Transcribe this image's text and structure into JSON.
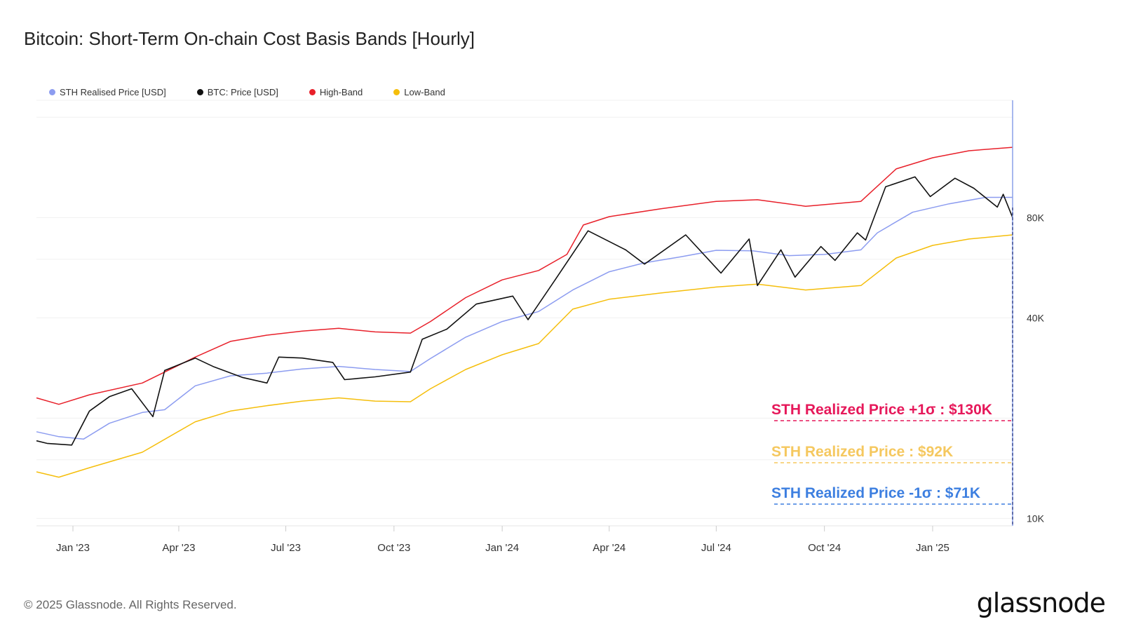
{
  "chart_data": {
    "type": "line",
    "title": "Bitcoin: Short-Term On-chain Cost Basis Bands [Hourly]",
    "yscale": "log",
    "ylim": [
      9500,
      180000
    ],
    "xlim": [
      "2022-12-01",
      "2025-03-10"
    ],
    "y_ticks": [
      {
        "value": 10000,
        "label": "10K"
      },
      {
        "value": 40000,
        "label": "40K"
      },
      {
        "value": 80000,
        "label": "80K"
      }
    ],
    "x_ticks": [
      {
        "date": "2023-01-01",
        "label": "Jan '23"
      },
      {
        "date": "2023-04-01",
        "label": "Apr '23"
      },
      {
        "date": "2023-07-01",
        "label": "Jul '23"
      },
      {
        "date": "2023-10-01",
        "label": "Oct '23"
      },
      {
        "date": "2024-01-01",
        "label": "Jan '24"
      },
      {
        "date": "2024-04-01",
        "label": "Apr '24"
      },
      {
        "date": "2024-07-01",
        "label": "Jul '24"
      },
      {
        "date": "2024-10-01",
        "label": "Oct '24"
      },
      {
        "date": "2025-01-01",
        "label": "Jan '25"
      }
    ],
    "grid": true,
    "legend_position": "top-left",
    "series": [
      {
        "name": "STH Realised Price [USD]",
        "color": "#8c9cf0",
        "points": [
          [
            "2022-12-01",
            18200
          ],
          [
            "2022-12-20",
            17600
          ],
          [
            "2023-01-10",
            17300
          ],
          [
            "2023-02-01",
            19300
          ],
          [
            "2023-03-01",
            20800
          ],
          [
            "2023-03-20",
            21200
          ],
          [
            "2023-04-15",
            25000
          ],
          [
            "2023-05-15",
            26800
          ],
          [
            "2023-06-15",
            27300
          ],
          [
            "2023-07-15",
            28100
          ],
          [
            "2023-08-15",
            28600
          ],
          [
            "2023-09-15",
            28000
          ],
          [
            "2023-10-15",
            27600
          ],
          [
            "2023-11-01",
            30200
          ],
          [
            "2023-12-01",
            35000
          ],
          [
            "2024-01-01",
            39000
          ],
          [
            "2024-02-01",
            41800
          ],
          [
            "2024-03-01",
            48500
          ],
          [
            "2024-04-01",
            55000
          ],
          [
            "2024-05-01",
            58500
          ],
          [
            "2024-06-01",
            61000
          ],
          [
            "2024-07-01",
            63800
          ],
          [
            "2024-08-01",
            63600
          ],
          [
            "2024-09-01",
            61500
          ],
          [
            "2024-10-01",
            62000
          ],
          [
            "2024-11-01",
            64000
          ],
          [
            "2024-11-15",
            72000
          ],
          [
            "2024-12-15",
            83000
          ],
          [
            "2025-01-15",
            88000
          ],
          [
            "2025-02-15",
            92000
          ],
          [
            "2025-03-10",
            92000
          ]
        ]
      },
      {
        "name": "BTC: Price [USD]",
        "color": "#111111",
        "points": [
          [
            "2022-12-01",
            17100
          ],
          [
            "2022-12-10",
            16800
          ],
          [
            "2022-12-31",
            16600
          ],
          [
            "2023-01-15",
            21000
          ],
          [
            "2023-02-01",
            23200
          ],
          [
            "2023-02-20",
            24500
          ],
          [
            "2023-03-10",
            20200
          ],
          [
            "2023-03-20",
            27800
          ],
          [
            "2023-04-15",
            30300
          ],
          [
            "2023-05-01",
            28500
          ],
          [
            "2023-05-25",
            26500
          ],
          [
            "2023-06-15",
            25500
          ],
          [
            "2023-06-25",
            30500
          ],
          [
            "2023-07-15",
            30300
          ],
          [
            "2023-08-10",
            29400
          ],
          [
            "2023-08-20",
            26100
          ],
          [
            "2023-09-15",
            26600
          ],
          [
            "2023-10-15",
            27500
          ],
          [
            "2023-10-25",
            34500
          ],
          [
            "2023-11-15",
            37000
          ],
          [
            "2023-12-10",
            44000
          ],
          [
            "2024-01-10",
            46500
          ],
          [
            "2024-01-23",
            39500
          ],
          [
            "2024-02-15",
            52000
          ],
          [
            "2024-03-14",
            73000
          ],
          [
            "2024-04-15",
            64000
          ],
          [
            "2024-05-01",
            58000
          ],
          [
            "2024-06-05",
            71000
          ],
          [
            "2024-07-05",
            54500
          ],
          [
            "2024-07-29",
            69000
          ],
          [
            "2024-08-05",
            50000
          ],
          [
            "2024-08-25",
            64000
          ],
          [
            "2024-09-06",
            53000
          ],
          [
            "2024-09-28",
            65500
          ],
          [
            "2024-10-10",
            59500
          ],
          [
            "2024-10-29",
            72000
          ],
          [
            "2024-11-05",
            68500
          ],
          [
            "2024-11-22",
            99000
          ],
          [
            "2024-12-17",
            106000
          ],
          [
            "2024-12-30",
            92500
          ],
          [
            "2025-01-20",
            105000
          ],
          [
            "2025-02-05",
            98000
          ],
          [
            "2025-02-25",
            86000
          ],
          [
            "2025-03-02",
            94000
          ],
          [
            "2025-03-10",
            80000
          ]
        ]
      },
      {
        "name": "High-Band",
        "color": "#e8202a",
        "points": [
          [
            "2022-12-01",
            23000
          ],
          [
            "2022-12-20",
            22000
          ],
          [
            "2023-01-15",
            23500
          ],
          [
            "2023-03-01",
            25500
          ],
          [
            "2023-04-15",
            30500
          ],
          [
            "2023-05-15",
            34000
          ],
          [
            "2023-06-15",
            35500
          ],
          [
            "2023-07-15",
            36500
          ],
          [
            "2023-08-15",
            37200
          ],
          [
            "2023-09-15",
            36300
          ],
          [
            "2023-10-15",
            36000
          ],
          [
            "2023-11-01",
            39000
          ],
          [
            "2023-12-01",
            46000
          ],
          [
            "2024-01-01",
            52000
          ],
          [
            "2024-02-01",
            55500
          ],
          [
            "2024-02-25",
            62000
          ],
          [
            "2024-03-10",
            76000
          ],
          [
            "2024-04-01",
            80500
          ],
          [
            "2024-05-15",
            85000
          ],
          [
            "2024-07-01",
            89500
          ],
          [
            "2024-08-05",
            90500
          ],
          [
            "2024-09-15",
            86500
          ],
          [
            "2024-11-01",
            89500
          ],
          [
            "2024-12-01",
            112000
          ],
          [
            "2025-01-01",
            121000
          ],
          [
            "2025-02-01",
            127000
          ],
          [
            "2025-03-10",
            130000
          ]
        ]
      },
      {
        "name": "Low-Band",
        "color": "#f5be0b",
        "points": [
          [
            "2022-12-01",
            13800
          ],
          [
            "2022-12-20",
            13300
          ],
          [
            "2023-01-15",
            14200
          ],
          [
            "2023-03-01",
            15800
          ],
          [
            "2023-04-15",
            19500
          ],
          [
            "2023-05-15",
            21000
          ],
          [
            "2023-06-15",
            21800
          ],
          [
            "2023-07-15",
            22500
          ],
          [
            "2023-08-15",
            23000
          ],
          [
            "2023-09-15",
            22500
          ],
          [
            "2023-10-15",
            22400
          ],
          [
            "2023-11-01",
            24500
          ],
          [
            "2023-12-01",
            28000
          ],
          [
            "2024-01-01",
            31000
          ],
          [
            "2024-02-01",
            33500
          ],
          [
            "2024-03-01",
            42500
          ],
          [
            "2024-04-01",
            45500
          ],
          [
            "2024-05-15",
            47500
          ],
          [
            "2024-07-01",
            49500
          ],
          [
            "2024-08-05",
            50500
          ],
          [
            "2024-09-15",
            48500
          ],
          [
            "2024-11-01",
            50000
          ],
          [
            "2024-12-01",
            60500
          ],
          [
            "2025-01-01",
            66000
          ],
          [
            "2025-02-01",
            69000
          ],
          [
            "2025-03-10",
            71000
          ]
        ]
      }
    ],
    "annotations": [
      {
        "text": "STH Realized Price +1σ : $130K",
        "color": "#e6185a"
      },
      {
        "text": "STH Realized Price  : $92K",
        "color": "#f5c85f"
      },
      {
        "text": "STH Realized Price -1σ : $71K",
        "color": "#3d7fe0"
      }
    ]
  },
  "legend": [
    {
      "label": "STH Realised Price [USD]",
      "color": "#8c9cf0"
    },
    {
      "label": "BTC: Price [USD]",
      "color": "#111111"
    },
    {
      "label": "High-Band",
      "color": "#e8202a"
    },
    {
      "label": "Low-Band",
      "color": "#f5be0b"
    }
  ],
  "footer": {
    "copyright": "© 2025 Glassnode. All Rights Reserved.",
    "brand": "glassnode"
  }
}
